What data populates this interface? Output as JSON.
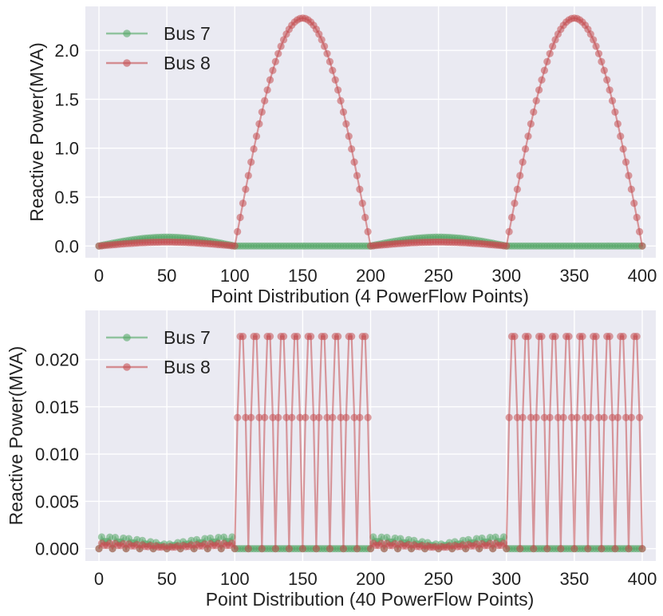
{
  "chart_data": [
    {
      "type": "line",
      "xlabel": "Point Distribution (4 PowerFlow Points)",
      "ylabel": "Reactive Power(MVA)",
      "xlim": [
        -10,
        410
      ],
      "ylim": [
        -0.12,
        2.45
      ],
      "xticks": [
        "0",
        "50",
        "100",
        "150",
        "200",
        "250",
        "300",
        "350",
        "400"
      ],
      "yticks": [
        "0.0",
        "0.5",
        "1.0",
        "1.5",
        "2.0"
      ],
      "grid": true,
      "legend_position": "top-left",
      "x": {
        "start": 0,
        "end": 400,
        "step": 2
      },
      "series": [
        {
          "name": "Bus 7",
          "color": "#55a868",
          "description": "sinusoidal arch over 0-100 (peak ~0.09 at x=45) and 200-300 (peak ~0.09 at x=255); ~0 elsewhere",
          "segments": [
            {
              "from": 0,
              "to": 100,
              "shape": "half-sine",
              "peak": 0.09
            },
            {
              "from": 100,
              "to": 200,
              "shape": "flat",
              "peak": 0.0
            },
            {
              "from": 200,
              "to": 300,
              "shape": "half-sine",
              "peak": 0.09
            },
            {
              "from": 300,
              "to": 400,
              "shape": "flat",
              "peak": 0.0
            }
          ]
        },
        {
          "name": "Bus 8",
          "color": "#c44e52",
          "description": "small arch over 0-100 and 200-300 (peak ~0.04); large half-sine over 100-200 and 300-400 (peak ~2.33 at x=150 and x=350)",
          "segments": [
            {
              "from": 0,
              "to": 100,
              "shape": "half-sine",
              "peak": 0.04
            },
            {
              "from": 100,
              "to": 200,
              "shape": "half-sine",
              "peak": 2.33
            },
            {
              "from": 200,
              "to": 300,
              "shape": "half-sine",
              "peak": 0.04
            },
            {
              "from": 300,
              "to": 400,
              "shape": "half-sine",
              "peak": 2.33
            }
          ]
        }
      ]
    },
    {
      "type": "line",
      "xlabel": "Point Distribution (40 PowerFlow Points)",
      "ylabel": "Reactive Power(MVA)",
      "xlim": [
        -10,
        410
      ],
      "ylim": [
        -0.0013,
        0.0252
      ],
      "xticks": [
        "0",
        "50",
        "100",
        "150",
        "200",
        "250",
        "300",
        "350",
        "400"
      ],
      "yticks": [
        "0.000",
        "0.005",
        "0.010",
        "0.015",
        "0.020"
      ],
      "grid": true,
      "legend_position": "top-left",
      "x": {
        "start": 0,
        "end": 400,
        "step": 2
      },
      "series": [
        {
          "name": "Bus 7",
          "color": "#55a868",
          "description": "small ripples (<0.0015) over 0-100 and 200-300, decaying/rising toward the edges; 0 elsewhere",
          "segments": [
            {
              "from": 0,
              "to": 100,
              "shape": "ripple",
              "peak": 0.0013
            },
            {
              "from": 100,
              "to": 200,
              "shape": "flat",
              "peak": 0.0
            },
            {
              "from": 200,
              "to": 300,
              "shape": "ripple",
              "peak": 0.0013
            },
            {
              "from": 300,
              "to": 400,
              "shape": "flat",
              "peak": 0.0
            }
          ]
        },
        {
          "name": "Bus 8",
          "color": "#c44e52",
          "description": "periodic 10-point half-sine pulses (peak ~0.0236) over 100-200 and 300-400; small ripples (<0.0007) over 0-100 and 200-300",
          "segments": [
            {
              "from": 0,
              "to": 100,
              "shape": "ripple",
              "peak": 0.0006
            },
            {
              "from": 100,
              "to": 200,
              "shape": "pulse-train",
              "period": 10,
              "peak": 0.0236
            },
            {
              "from": 200,
              "to": 300,
              "shape": "ripple",
              "peak": 0.0006
            },
            {
              "from": 300,
              "to": 400,
              "shape": "pulse-train",
              "period": 10,
              "peak": 0.0236
            }
          ]
        }
      ]
    }
  ]
}
